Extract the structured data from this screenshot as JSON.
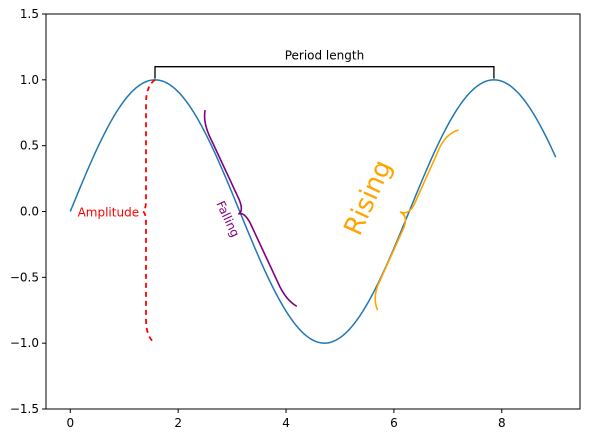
{
  "chart_data": {
    "type": "line",
    "xlim": [
      -0.45,
      9.45
    ],
    "ylim": [
      -1.5,
      1.5
    ],
    "x_ticks": [
      0,
      2,
      4,
      6,
      8
    ],
    "y_ticks": [
      1.5,
      1.0,
      0.5,
      0.0,
      -0.5,
      -1.0,
      -1.5
    ],
    "x_tick_labels": [
      "0",
      "2",
      "4",
      "6",
      "8"
    ],
    "y_tick_labels": [
      "1.5",
      "1.0",
      "0.5",
      "0.0",
      "−0.5",
      "−1.0",
      "−1.5"
    ],
    "grid": false,
    "series": [
      {
        "function": "sin",
        "x_range": [
          0,
          9
        ],
        "color": "#1f77b4"
      }
    ],
    "annotations": {
      "period": {
        "text": "Period length",
        "x_start": 1.5708,
        "x_end": 7.854,
        "y": 1.1,
        "color": "#000000"
      },
      "amplitude": {
        "text": "Amplitude",
        "x": 1.5708,
        "y_from": 1.0,
        "y_to": -1.0,
        "tip_x": 1.35,
        "color": "#ff0000",
        "style": "dashed"
      },
      "falling": {
        "text": "Falling",
        "from": [
          2.5,
          0.77
        ],
        "to": [
          4.2,
          -0.72
        ],
        "color": "#800080"
      },
      "rising": {
        "text": "Rising",
        "from": [
          5.7,
          -0.75
        ],
        "to": [
          7.2,
          0.62
        ],
        "color": "#ffa500"
      }
    }
  }
}
